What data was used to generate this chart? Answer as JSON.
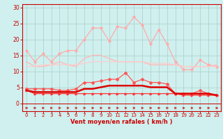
{
  "x": [
    0,
    1,
    2,
    3,
    4,
    5,
    6,
    7,
    8,
    9,
    10,
    11,
    12,
    13,
    14,
    15,
    16,
    17,
    18,
    19,
    20,
    21,
    22,
    23
  ],
  "series": {
    "max_gust": [
      16.5,
      13.0,
      15.5,
      13.0,
      15.5,
      16.5,
      16.5,
      20.0,
      23.5,
      23.5,
      19.5,
      24.0,
      23.5,
      27.0,
      24.5,
      18.5,
      23.0,
      18.5,
      13.0,
      10.5,
      10.5,
      13.5,
      12.0,
      11.5
    ],
    "avg_gust": [
      13.0,
      11.5,
      11.5,
      12.0,
      13.0,
      12.0,
      11.5,
      14.0,
      15.0,
      15.0,
      14.0,
      13.0,
      13.0,
      13.0,
      13.0,
      12.0,
      12.0,
      12.0,
      12.0,
      11.5,
      11.5,
      11.5,
      11.5,
      12.0
    ],
    "min_gust": [
      11.5,
      11.5,
      12.0,
      12.0,
      12.0,
      12.0,
      12.0,
      12.5,
      13.0,
      13.0,
      13.0,
      13.0,
      13.0,
      13.0,
      13.0,
      12.5,
      12.5,
      12.5,
      12.0,
      11.5,
      11.5,
      11.5,
      11.5,
      11.5
    ],
    "max_wind": [
      4.5,
      4.5,
      4.5,
      4.5,
      4.0,
      4.0,
      4.5,
      6.5,
      6.5,
      7.0,
      7.5,
      7.5,
      9.5,
      6.5,
      7.5,
      6.5,
      6.5,
      6.0,
      3.0,
      3.0,
      3.0,
      4.0,
      3.0,
      2.5
    ],
    "avg_wind": [
      4.0,
      3.5,
      3.5,
      3.5,
      3.5,
      3.5,
      3.5,
      4.5,
      4.5,
      5.0,
      5.5,
      5.5,
      5.5,
      5.5,
      5.5,
      5.0,
      5.0,
      5.0,
      3.0,
      3.0,
      3.0,
      3.0,
      3.0,
      2.5
    ],
    "min_wind": [
      4.0,
      3.0,
      3.0,
      3.0,
      3.0,
      3.0,
      3.0,
      3.0,
      3.0,
      3.0,
      3.0,
      3.0,
      3.0,
      3.0,
      3.0,
      3.0,
      3.0,
      3.0,
      3.0,
      2.5,
      2.5,
      2.5,
      2.5,
      2.5
    ]
  },
  "bg_color": "#cff0ee",
  "grid_color": "#b0d4d0",
  "line_colors": {
    "max_gust": "#ffaaaa",
    "avg_gust": "#ffbbbb",
    "min_gust": "#ffcccc",
    "max_wind": "#ff5555",
    "avg_wind": "#dd0000",
    "min_wind": "#ff3333"
  },
  "xlabel": "Vent moyen/en rafales ( km/h )",
  "ylim": [
    -2.5,
    31
  ],
  "yticks": [
    0,
    5,
    10,
    15,
    20,
    25,
    30
  ],
  "xticks": [
    0,
    1,
    2,
    3,
    4,
    5,
    6,
    7,
    8,
    9,
    10,
    11,
    12,
    13,
    14,
    15,
    16,
    17,
    18,
    19,
    20,
    21,
    22,
    23
  ]
}
